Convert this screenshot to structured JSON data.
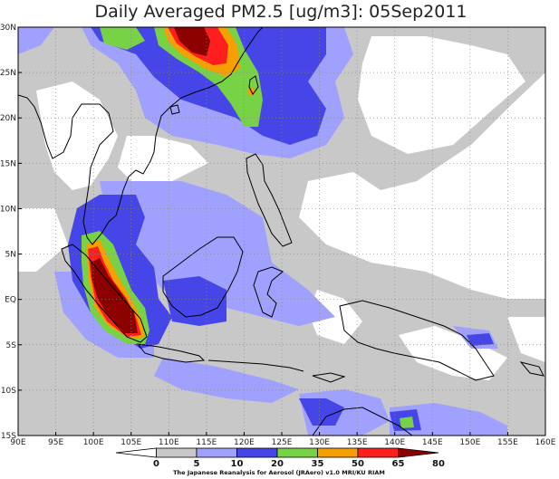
{
  "title": "Daily Averaged PM2.5 [ug/m3]: 05Sep2011",
  "credit": "The Japanese Reanalysis for Aerosol (JRAero) v1.0 MRI/KU RIAM",
  "map": {
    "lon_range": [
      90,
      160
    ],
    "lat_range": [
      -15,
      30
    ],
    "lon_ticks": [
      {
        "value": 90,
        "label": "90E"
      },
      {
        "value": 95,
        "label": "95E"
      },
      {
        "value": 100,
        "label": "100E"
      },
      {
        "value": 105,
        "label": "105E"
      },
      {
        "value": 110,
        "label": "110E"
      },
      {
        "value": 115,
        "label": "115E"
      },
      {
        "value": 120,
        "label": "120E"
      },
      {
        "value": 125,
        "label": "125E"
      },
      {
        "value": 130,
        "label": "130E"
      },
      {
        "value": 135,
        "label": "135E"
      },
      {
        "value": 140,
        "label": "140E"
      },
      {
        "value": 145,
        "label": "145E"
      },
      {
        "value": 150,
        "label": "150E"
      },
      {
        "value": 155,
        "label": "155E"
      },
      {
        "value": 160,
        "label": "160E"
      }
    ],
    "lat_ticks": [
      {
        "value": 30,
        "label": "30N"
      },
      {
        "value": 25,
        "label": "25N"
      },
      {
        "value": 20,
        "label": "20N"
      },
      {
        "value": 15,
        "label": "15N"
      },
      {
        "value": 10,
        "label": "10N"
      },
      {
        "value": 5,
        "label": "5N"
      },
      {
        "value": 0,
        "label": "EQ"
      },
      {
        "value": -5,
        "label": "5S"
      },
      {
        "value": -10,
        "label": "10S"
      },
      {
        "value": -15,
        "label": "15S"
      }
    ],
    "gridlines": true
  },
  "colorbar": {
    "labels": [
      "0",
      "5",
      "10",
      "20",
      "35",
      "50",
      "65",
      "80"
    ],
    "colors": [
      "#ffffff",
      "#c8c8c8",
      "#a0a0ff",
      "#4646e8",
      "#78d246",
      "#f5a000",
      "#ff1e1e",
      "#8c0000"
    ]
  }
}
